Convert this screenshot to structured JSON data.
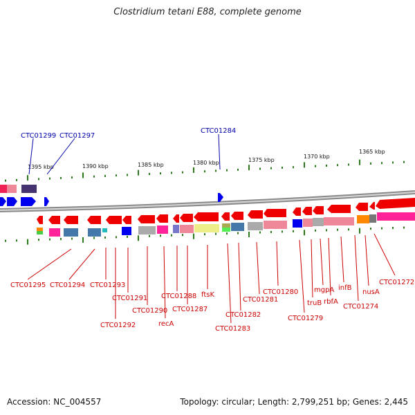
{
  "title": "Clostridium tetani E88, complete genome",
  "footer": {
    "accession": "Accession: NC_004557",
    "topology": "Topology: circular; Length: 2,799,251 bp; Genes: 2,445"
  },
  "axis_ticks": [
    "1395 kbp",
    "1390 kbp",
    "1385 kbp",
    "1380 kbp",
    "1375 kbp",
    "1370 kbp",
    "1365 kbp"
  ],
  "top_labels": [
    "CTC01299",
    "CTC01297",
    "CTC01284"
  ],
  "bottom_labels": [
    "CTC01295",
    "CTC01294",
    "CTC01293",
    "CTC01292",
    "CTC01291",
    "CTC01290",
    "recA",
    "CTC01288",
    "CTC01287",
    "ftsK",
    "CTC01283",
    "CTC01282",
    "CTC01281",
    "CTC01280",
    "CTC01279",
    "truB",
    "mgpA",
    "rbfA",
    "infB",
    "CTC01274",
    "nusA",
    "CTC01272"
  ],
  "colors": {
    "forward_gene": "#0000ee",
    "reverse_gene": "#ee0000",
    "top_label": "#0000aa",
    "bottom_label": "#cc0000",
    "tick": "#2a7a1a",
    "backbone": "#999999"
  }
}
